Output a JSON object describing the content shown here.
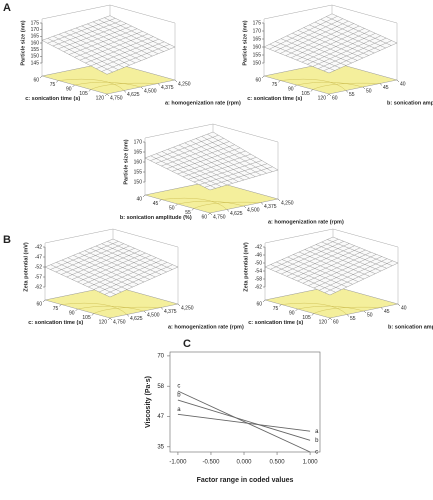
{
  "panel_labels": [
    "A",
    "B",
    "C"
  ],
  "chart_data": [
    {
      "type": "surface3d",
      "z_label": "Particle size (nm)",
      "x_label": "c: sonication time (s)",
      "y_label": "a: homogenization rate (rpm)",
      "xlim": [
        60,
        120
      ],
      "xticks": [
        60,
        75,
        90,
        105,
        120
      ],
      "ylim": [
        4250,
        4750
      ],
      "yticks": [
        {
          "value": 4250,
          "label": "4,250"
        },
        {
          "value": 4375,
          "label": "4,375"
        },
        {
          "value": 4500,
          "label": "4,500"
        },
        {
          "value": 4625,
          "label": "4,625"
        },
        {
          "value": 4750,
          "label": "4,750"
        }
      ],
      "zlim": [
        145,
        175
      ],
      "zticks": [
        145,
        150,
        155,
        160,
        165,
        170,
        175
      ],
      "z_corners": [
        170,
        160,
        162,
        150
      ],
      "surface_color": "#777777",
      "floor_color": "#f4ef9c"
    },
    {
      "type": "surface3d",
      "z_label": "Particle size (nm)",
      "x_label": "c: sonication time (s)",
      "y_label": "b: sonication amplitude (%)",
      "xlim": [
        60,
        120
      ],
      "xticks": [
        60,
        75,
        90,
        105,
        120
      ],
      "ylim": [
        40,
        60
      ],
      "yticks": [
        40,
        45,
        50,
        55,
        60
      ],
      "zlim": [
        150,
        175
      ],
      "zticks": [
        150,
        155,
        160,
        165,
        170,
        175
      ],
      "z_corners": [
        172,
        165,
        160,
        155
      ],
      "surface_color": "#777777",
      "floor_color": "#f4ef9c"
    },
    {
      "type": "surface3d",
      "z_label": "Particle size (nm)",
      "x_label": "b: sonication amplitude (%)",
      "y_label": "a: homogenization rate (rpm)",
      "xlim": [
        40,
        60
      ],
      "xticks": [
        40,
        45,
        50,
        55,
        60
      ],
      "ylim": [
        4250,
        4750
      ],
      "yticks": [
        {
          "value": 4250,
          "label": "4,250"
        },
        {
          "value": 4375,
          "label": "4,375"
        },
        {
          "value": 4500,
          "label": "4,500"
        },
        {
          "value": 4625,
          "label": "4,625"
        },
        {
          "value": 4750,
          "label": "4,750"
        }
      ],
      "zlim": [
        150,
        170
      ],
      "zticks": [
        150,
        155,
        160,
        165,
        170
      ],
      "z_corners": [
        168,
        158,
        162,
        155
      ],
      "surface_color": "#777777",
      "floor_color": "#f4ef9c"
    },
    {
      "type": "surface3d",
      "z_label": "Zeta potential (mV)",
      "x_label": "c: sonication time (s)",
      "y_label": "a: homogenization rate (rpm)",
      "xlim": [
        60,
        120
      ],
      "xticks": [
        60,
        75,
        90,
        105,
        120
      ],
      "ylim": [
        4250,
        4750
      ],
      "yticks": [
        {
          "value": 4250,
          "label": "4,250"
        },
        {
          "value": 4375,
          "label": "4,375"
        },
        {
          "value": 4500,
          "label": "4,500"
        },
        {
          "value": 4625,
          "label": "4,625"
        },
        {
          "value": 4750,
          "label": "4,750"
        }
      ],
      "zlim": [
        -62,
        -42
      ],
      "zticks": [
        -62,
        -57,
        -52,
        -47,
        -42
      ],
      "z_corners": [
        -45,
        -50,
        -52,
        -58
      ],
      "surface_color": "#777777",
      "floor_color": "#f4ef9c"
    },
    {
      "type": "surface3d",
      "z_label": "Zeta potential (mV)",
      "x_label": "c: sonication time (s)",
      "y_label": "b: sonication amplitude (%)",
      "xlim": [
        60,
        120
      ],
      "xticks": [
        60,
        75,
        90,
        105,
        120
      ],
      "ylim": [
        40,
        60
      ],
      "yticks": [
        40,
        45,
        50,
        55,
        60
      ],
      "zlim": [
        -62,
        -42
      ],
      "zticks": [
        -62,
        -58,
        -54,
        -50,
        -46,
        -42
      ],
      "z_corners": [
        -44,
        -48,
        -52,
        -57
      ],
      "surface_color": "#777777",
      "floor_color": "#f4ef9c"
    },
    {
      "type": "line",
      "x_label": "Factor range in coded values",
      "y_label": "Viscosity (Pa·s)",
      "x": [
        -1,
        1
      ],
      "xlim": [
        -1.12,
        1.15
      ],
      "xticks": [
        {
          "value": -1,
          "label": "-1.000"
        },
        {
          "value": -0.5,
          "label": "-0.500"
        },
        {
          "value": 0,
          "label": "0.000"
        },
        {
          "value": 0.5,
          "label": "0.500"
        },
        {
          "value": 1,
          "label": "1.000"
        }
      ],
      "ylim": [
        33,
        71.5
      ],
      "yticks": [
        35,
        {
          "value": 46.67,
          "label": "47"
        },
        {
          "value": 58.33,
          "label": "58"
        },
        70
      ],
      "series": [
        {
          "name": "a",
          "color": "#666666",
          "values": [
            47.5,
            41
          ]
        },
        {
          "name": "b",
          "color": "#666666",
          "values": [
            53,
            37.5
          ]
        },
        {
          "name": "c",
          "color": "#666666",
          "values": [
            56.5,
            33
          ]
        }
      ]
    }
  ]
}
